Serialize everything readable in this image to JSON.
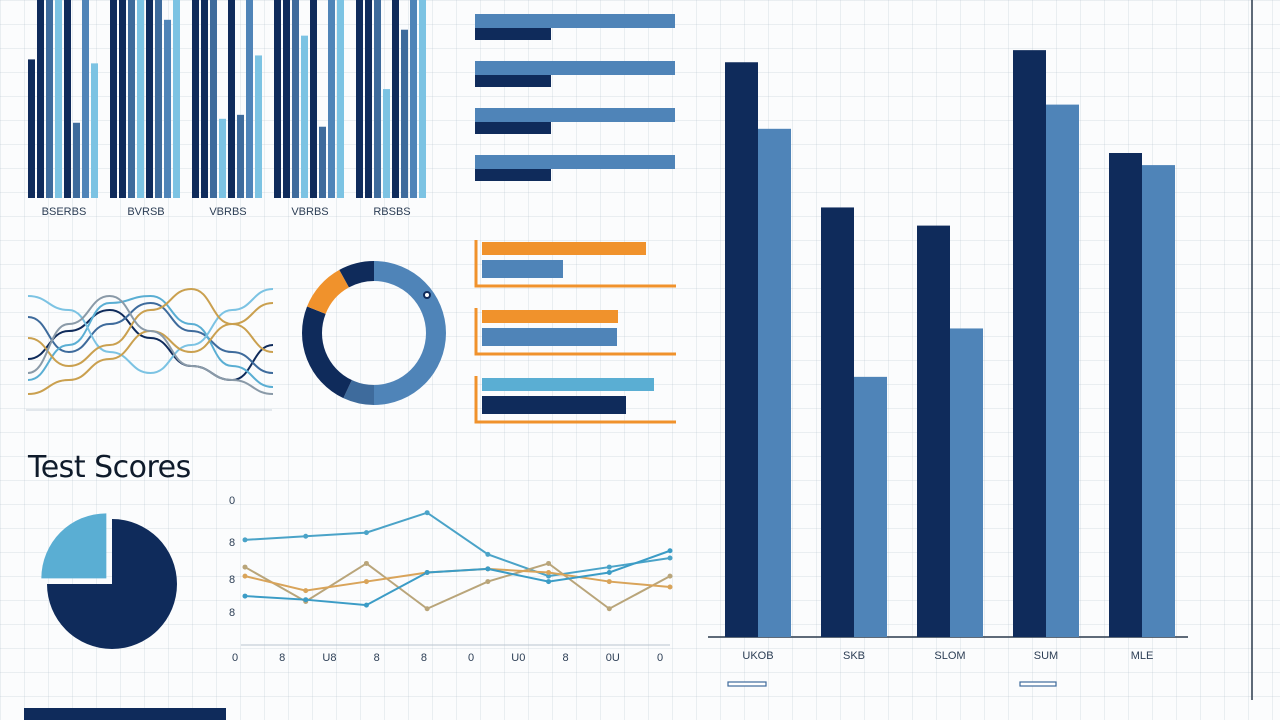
{
  "title": "Test Scores",
  "colors": {
    "navy": "#0f2b5b",
    "steel": "#3e6b9c",
    "mid": "#4f84b8",
    "light": "#7cc3e3",
    "sky": "#5aaed3",
    "orange": "#f0922c",
    "tan": "#caa04f",
    "gray": "#8a9aa8"
  },
  "chart_data": [
    {
      "type": "bar",
      "id": "top-left-grouped-bars",
      "groups": [
        {
          "label": "BSERBS",
          "values": [
            70,
            100,
            100,
            100,
            100,
            38,
            100,
            68
          ]
        },
        {
          "label": "BVRSB",
          "values": [
            100,
            100,
            100,
            100,
            100,
            100,
            90,
            100
          ]
        },
        {
          "label": "VBRBS",
          "values": [
            100,
            100,
            100,
            40,
            100,
            42,
            100,
            72
          ]
        },
        {
          "label": "VBRBS",
          "values": [
            100,
            100,
            100,
            82,
            100,
            36,
            100,
            100
          ]
        },
        {
          "label": "RBSBS",
          "values": [
            100,
            100,
            100,
            55,
            100,
            85,
            100,
            100
          ]
        }
      ],
      "ylim": [
        0,
        100
      ]
    },
    {
      "type": "bar",
      "id": "top-middle-horizontal-bars",
      "orientation": "horizontal",
      "series": [
        {
          "name": "",
          "values": [
            100,
            100,
            100,
            100
          ]
        },
        {
          "name": "",
          "values": [
            38,
            38,
            38,
            38
          ]
        }
      ],
      "xlim": [
        0,
        100
      ]
    },
    {
      "type": "line",
      "id": "wavy-lines",
      "series": [
        {
          "name": "",
          "color": "#0f2b5b",
          "values": [
            35,
            55,
            70,
            50,
            30,
            20,
            45
          ]
        },
        {
          "name": "",
          "color": "#3e6b9c",
          "values": [
            65,
            40,
            60,
            75,
            55,
            40,
            25
          ]
        },
        {
          "name": "",
          "color": "#5aaed3",
          "values": [
            20,
            45,
            75,
            80,
            60,
            30,
            15
          ]
        },
        {
          "name": "",
          "color": "#7cc3e3",
          "values": [
            80,
            70,
            40,
            25,
            45,
            70,
            85
          ]
        },
        {
          "name": "",
          "color": "#caa04f",
          "values": [
            50,
            30,
            45,
            70,
            85,
            60,
            40
          ]
        },
        {
          "name": "",
          "color": "#caa04f",
          "values": [
            10,
            20,
            35,
            55,
            40,
            60,
            75
          ]
        },
        {
          "name": "",
          "color": "#8a9aa8",
          "values": [
            25,
            60,
            80,
            55,
            30,
            20,
            10
          ]
        }
      ],
      "ylim": [
        0,
        100
      ]
    },
    {
      "type": "pie",
      "id": "donut",
      "slices": [
        {
          "value": 50,
          "color": "#4f84b8"
        },
        {
          "value": 7,
          "color": "#3e6b9c"
        },
        {
          "value": 24,
          "color": "#0f2b5b"
        },
        {
          "value": 11,
          "color": "#f0922c"
        },
        {
          "value": 8,
          "color": "#0f2b5b"
        }
      ]
    },
    {
      "type": "bar",
      "id": "orange-bordered-bars",
      "orientation": "horizontal",
      "series": [
        {
          "name": "",
          "values": [
            82,
            68,
            86
          ]
        },
        {
          "name": "",
          "values": [
            45,
            75,
            80
          ]
        }
      ],
      "xlim": [
        0,
        100
      ]
    },
    {
      "type": "pie",
      "id": "pie-test-scores",
      "slices": [
        {
          "value": 75,
          "color": "#0f2b5b"
        },
        {
          "value": 25,
          "color": "#5aaed3"
        }
      ]
    },
    {
      "type": "line",
      "id": "bottom-line-chart",
      "ticklabels_x": [
        "0",
        "8",
        "U8",
        "8",
        "8",
        "0",
        "U0",
        "8",
        "0U",
        "0"
      ],
      "ticklabels_y": [
        "0",
        "8",
        "8",
        "8"
      ],
      "series": [
        {
          "name": "",
          "color": "#4aa3c8",
          "values": [
            78,
            80,
            82,
            93,
            70,
            58,
            63,
            68
          ]
        },
        {
          "name": "",
          "color": "#b9a57a",
          "values": [
            63,
            44,
            65,
            40,
            55,
            65,
            40,
            58
          ]
        },
        {
          "name": "",
          "color": "#d9a45a",
          "values": [
            58,
            50,
            55,
            60,
            62,
            60,
            55,
            52
          ]
        },
        {
          "name": "",
          "color": "#3b9cc6",
          "values": [
            47,
            45,
            42,
            60,
            62,
            55,
            60,
            72
          ]
        }
      ],
      "ylim": [
        20,
        100
      ]
    },
    {
      "type": "bar",
      "id": "large-bar-chart",
      "categories": [
        "UKOB",
        "SKB",
        "SLOM",
        "SUM",
        "MLE"
      ],
      "series": [
        {
          "name": "",
          "color": "#0f2b5b",
          "values": [
            95,
            71,
            68,
            97,
            80
          ]
        },
        {
          "name": "",
          "color": "#4f84b8",
          "values": [
            84,
            43,
            51,
            88,
            78
          ]
        }
      ],
      "ylim": [
        0,
        100
      ]
    }
  ]
}
